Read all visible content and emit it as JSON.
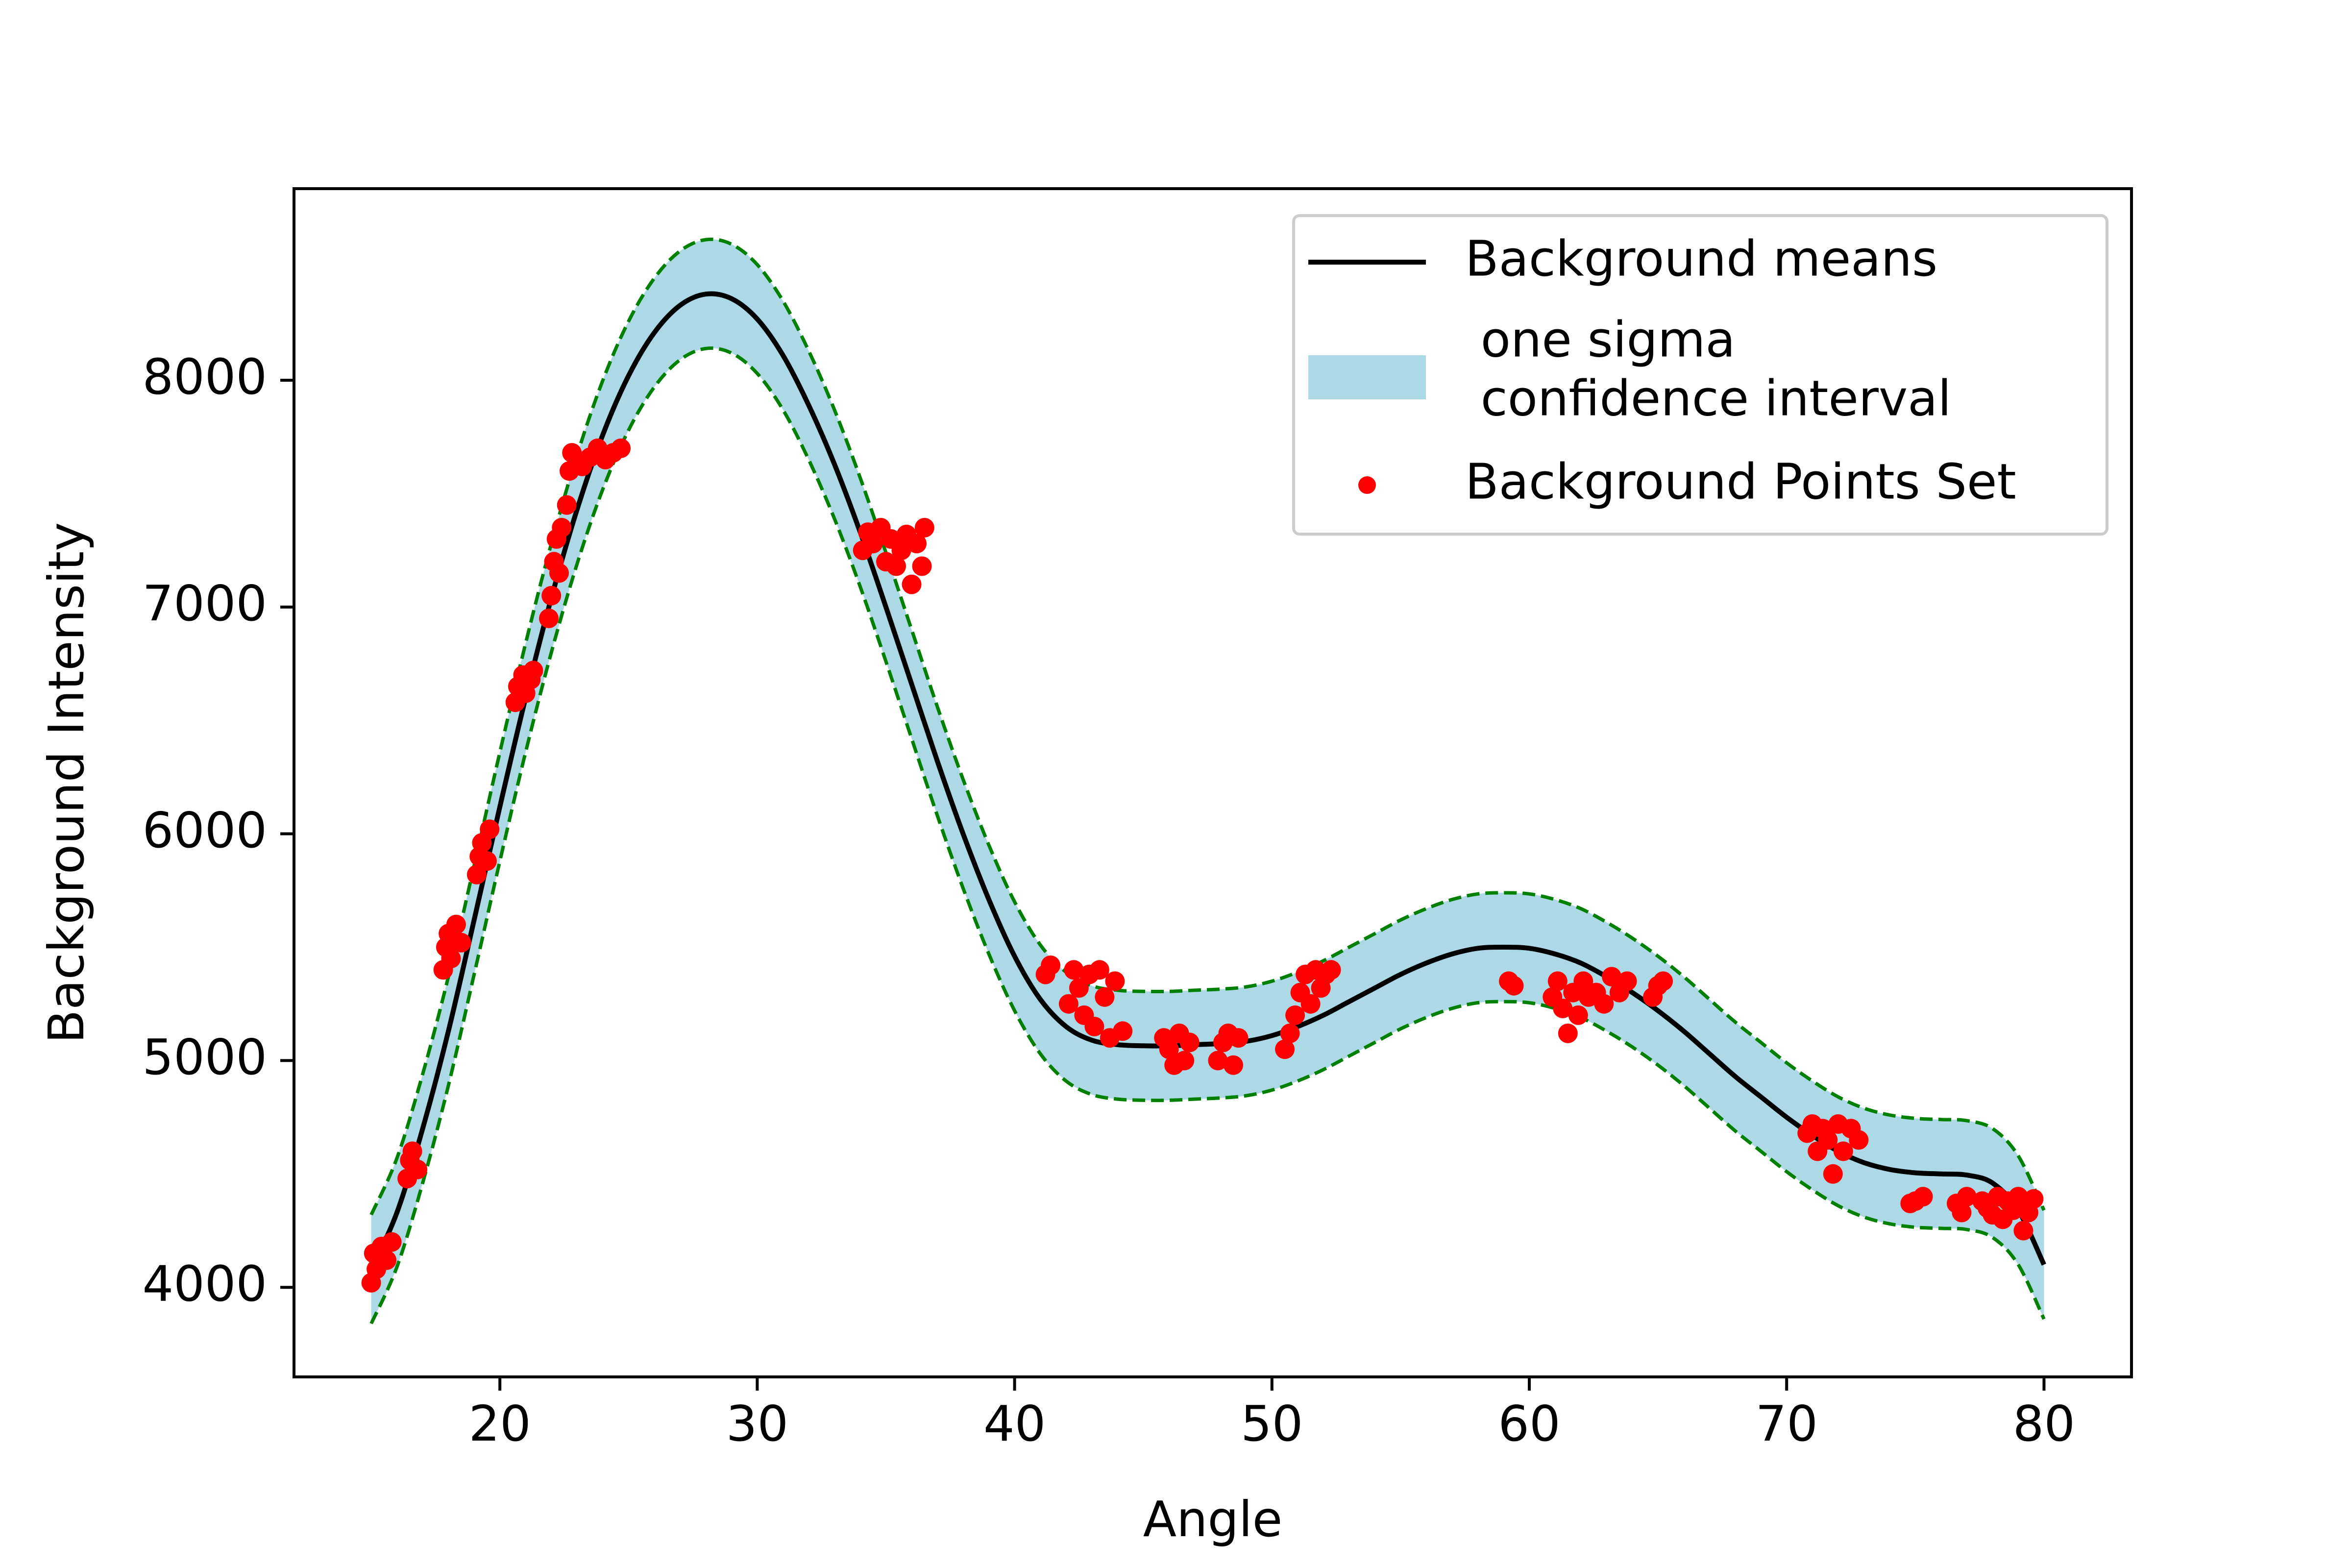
{
  "chart_data": {
    "type": "line",
    "xlabel": "Angle",
    "ylabel": "Background Intensity",
    "xlim": [
      12,
      83.4
    ],
    "ylim": [
      3605,
      8845
    ],
    "xticks": [
      20,
      30,
      40,
      50,
      60,
      70,
      80
    ],
    "yticks": [
      4000,
      5000,
      6000,
      7000,
      8000
    ],
    "xtick_labels": [
      "20",
      "30",
      "40",
      "50",
      "60",
      "70",
      "80"
    ],
    "ytick_labels": [
      "4000",
      "5000",
      "6000",
      "7000",
      "8000"
    ],
    "grid": false,
    "legend_position": "top-right",
    "mean_curve": {
      "name": "Background means",
      "color": "#000000",
      "x": [
        15,
        16,
        17,
        18,
        19,
        20,
        21,
        22,
        23,
        24,
        25,
        26,
        27,
        28,
        29,
        30,
        31,
        32,
        33,
        34,
        35,
        36,
        37,
        38,
        39,
        40,
        41,
        42,
        43,
        44,
        45,
        46,
        47,
        48,
        49,
        50,
        51,
        52,
        53,
        54,
        55,
        56,
        57,
        58,
        59,
        60,
        61,
        62,
        63,
        64,
        65,
        66,
        67,
        68,
        69,
        70,
        71,
        72,
        73,
        74,
        75,
        76,
        77,
        78,
        79,
        80
      ],
      "y": [
        4080,
        4330,
        4700,
        5130,
        5620,
        6120,
        6600,
        7040,
        7430,
        7760,
        8020,
        8210,
        8330,
        8380,
        8360,
        8270,
        8110,
        7890,
        7630,
        7330,
        7000,
        6660,
        6320,
        6000,
        5710,
        5460,
        5270,
        5150,
        5090,
        5070,
        5065,
        5065,
        5070,
        5075,
        5085,
        5110,
        5150,
        5200,
        5260,
        5320,
        5380,
        5430,
        5470,
        5495,
        5500,
        5495,
        5470,
        5430,
        5370,
        5300,
        5220,
        5130,
        5030,
        4930,
        4840,
        4750,
        4670,
        4600,
        4550,
        4520,
        4505,
        4500,
        4495,
        4460,
        4340,
        4100
      ]
    },
    "band_half_width": 240,
    "band_fill_color": "#add8e6",
    "band_edge_color": "#008000",
    "band_label": " one sigma\n confidence interval",
    "points": {
      "name": "Background Points Set",
      "color": "#ff0000",
      "x": [
        15,
        15.1,
        15.2,
        15.4,
        15.6,
        15.8,
        16.4,
        16.5,
        16.6,
        16.8,
        17.8,
        17.9,
        18.0,
        18.1,
        18.3,
        18.5,
        19.1,
        19.2,
        19.3,
        19.5,
        19.6,
        20.6,
        20.7,
        20.9,
        21.0,
        21.2,
        21.3,
        21.9,
        22.0,
        22.1,
        22.2,
        22.3,
        22.4,
        22.6,
        22.7,
        22.8,
        23.2,
        23.5,
        23.8,
        24.1,
        24.4,
        24.7,
        34.1,
        34.3,
        34.5,
        34.8,
        35.0,
        35.2,
        35.4,
        35.6,
        35.8,
        36.0,
        36.2,
        36.4,
        36.5,
        41.2,
        41.4,
        42.1,
        42.3,
        42.5,
        42.7,
        42.9,
        43.1,
        43.3,
        43.5,
        43.7,
        43.9,
        44.2,
        45.8,
        46.0,
        46.2,
        46.4,
        46.6,
        46.8,
        47.9,
        48.1,
        48.3,
        48.5,
        48.7,
        50.5,
        50.7,
        50.9,
        51.1,
        51.3,
        51.5,
        51.7,
        51.9,
        52.1,
        52.3,
        59.2,
        59.4,
        60.9,
        61.1,
        61.3,
        61.5,
        61.7,
        61.9,
        62.1,
        62.3,
        62.6,
        62.9,
        63.2,
        63.5,
        63.8,
        64.8,
        65.0,
        65.2,
        70.8,
        71.0,
        71.2,
        71.4,
        71.6,
        71.8,
        72.0,
        72.2,
        72.5,
        72.8,
        74.8,
        75.0,
        75.3,
        76.6,
        76.8,
        77.0,
        77.6,
        77.8,
        78.0,
        78.2,
        78.4,
        78.6,
        78.8,
        79.0,
        79.2,
        79.4,
        79.6
      ],
      "y": [
        4020,
        4150,
        4080,
        4180,
        4120,
        4200,
        4480,
        4560,
        4600,
        4520,
        5400,
        5500,
        5560,
        5450,
        5600,
        5520,
        5820,
        5900,
        5960,
        5880,
        6020,
        6580,
        6650,
        6700,
        6620,
        6680,
        6720,
        6950,
        7050,
        7200,
        7300,
        7150,
        7350,
        7450,
        7600,
        7680,
        7620,
        7660,
        7700,
        7650,
        7680,
        7700,
        7250,
        7330,
        7280,
        7350,
        7200,
        7300,
        7180,
        7250,
        7320,
        7100,
        7280,
        7180,
        7350,
        5380,
        5420,
        5250,
        5400,
        5320,
        5200,
        5380,
        5150,
        5400,
        5280,
        5100,
        5350,
        5130,
        5100,
        5050,
        4980,
        5120,
        5000,
        5080,
        5000,
        5080,
        5120,
        4980,
        5100,
        5050,
        5120,
        5200,
        5300,
        5380,
        5250,
        5400,
        5320,
        5380,
        5400,
        5350,
        5330,
        5280,
        5350,
        5230,
        5120,
        5300,
        5200,
        5350,
        5280,
        5300,
        5250,
        5370,
        5300,
        5350,
        5280,
        5330,
        5350,
        4680,
        4720,
        4600,
        4700,
        4650,
        4500,
        4720,
        4600,
        4700,
        4650,
        4370,
        4380,
        4400,
        4370,
        4330,
        4400,
        4380,
        4350,
        4320,
        4400,
        4300,
        4380,
        4340,
        4400,
        4250,
        4330,
        4390
      ]
    }
  },
  "legend": {
    "entries": [
      "Background means",
      " one sigma",
      " confidence interval",
      "Background Points Set"
    ]
  }
}
